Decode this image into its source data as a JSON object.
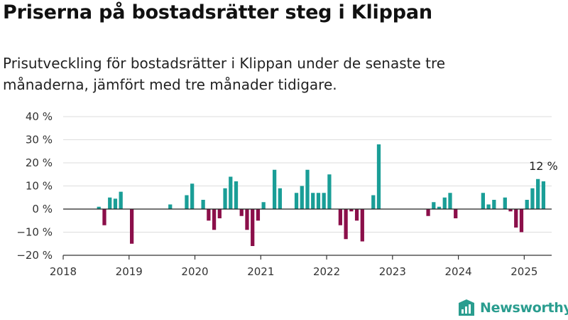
{
  "title": "Priserna på bostadsrätter steg i Klippan",
  "subtitle": "Prisutveckling för bostadsrätter i Klippan under de senaste tre månaderna, jämfört med tre månader tidigare.",
  "brand": {
    "name": "Newsworthy",
    "icon": "newsworthy-logo-icon",
    "color": "#2a9d8f"
  },
  "colors": {
    "positive": "#1a9e97",
    "negative": "#8b0f4a",
    "grid": "#dddddd",
    "axis": "#333333"
  },
  "chart_data": {
    "type": "bar",
    "ylim": [
      -20,
      40
    ],
    "yticks": [
      -20,
      -10,
      0,
      10,
      20,
      30,
      40
    ],
    "ytick_labels": [
      "−20 %",
      "−10 %",
      "0 %",
      "10 %",
      "20 %",
      "30 %",
      "40 %"
    ],
    "xlim": [
      "2018-01",
      "2025-06"
    ],
    "xticks": [
      "2018",
      "2019",
      "2020",
      "2021",
      "2022",
      "2023",
      "2024",
      "2025"
    ],
    "grid": "horizontal",
    "annotation": {
      "text": "12 %",
      "x": "2025-04"
    },
    "series": [
      {
        "x": [
          "2018-07",
          "2018-08",
          "2018-09",
          "2018-10",
          "2018-11",
          "2019-01",
          "2019-08",
          "2019-11",
          "2019-12",
          "2020-02",
          "2020-03",
          "2020-04",
          "2020-05",
          "2020-06",
          "2020-07",
          "2020-08",
          "2020-09",
          "2020-10",
          "2020-11",
          "2020-12",
          "2021-01",
          "2021-03",
          "2021-04",
          "2021-07",
          "2021-08",
          "2021-09",
          "2021-10",
          "2021-11",
          "2021-12",
          "2022-01",
          "2022-03",
          "2022-04",
          "2022-05",
          "2022-06",
          "2022-07",
          "2022-09",
          "2022-10",
          "2023-07",
          "2023-08",
          "2023-09",
          "2023-10",
          "2023-11",
          "2023-12",
          "2024-05",
          "2024-06",
          "2024-07",
          "2024-09",
          "2024-10",
          "2024-11",
          "2024-12",
          "2025-01",
          "2025-02",
          "2025-03",
          "2025-04"
        ],
        "values": [
          1,
          -7,
          5,
          4.5,
          7.5,
          -15,
          2,
          6,
          11,
          4,
          -5,
          -9,
          -4,
          9,
          14,
          12,
          -3,
          -9,
          -16,
          -5,
          3,
          17,
          9,
          7,
          10,
          17,
          7,
          7,
          7,
          15,
          -7,
          -13,
          -1,
          -5,
          -14,
          6,
          28,
          -3,
          3,
          1,
          5,
          7,
          -4,
          7,
          2,
          4,
          5,
          -1,
          -8,
          -10,
          4,
          9,
          13,
          12
        ]
      }
    ]
  }
}
